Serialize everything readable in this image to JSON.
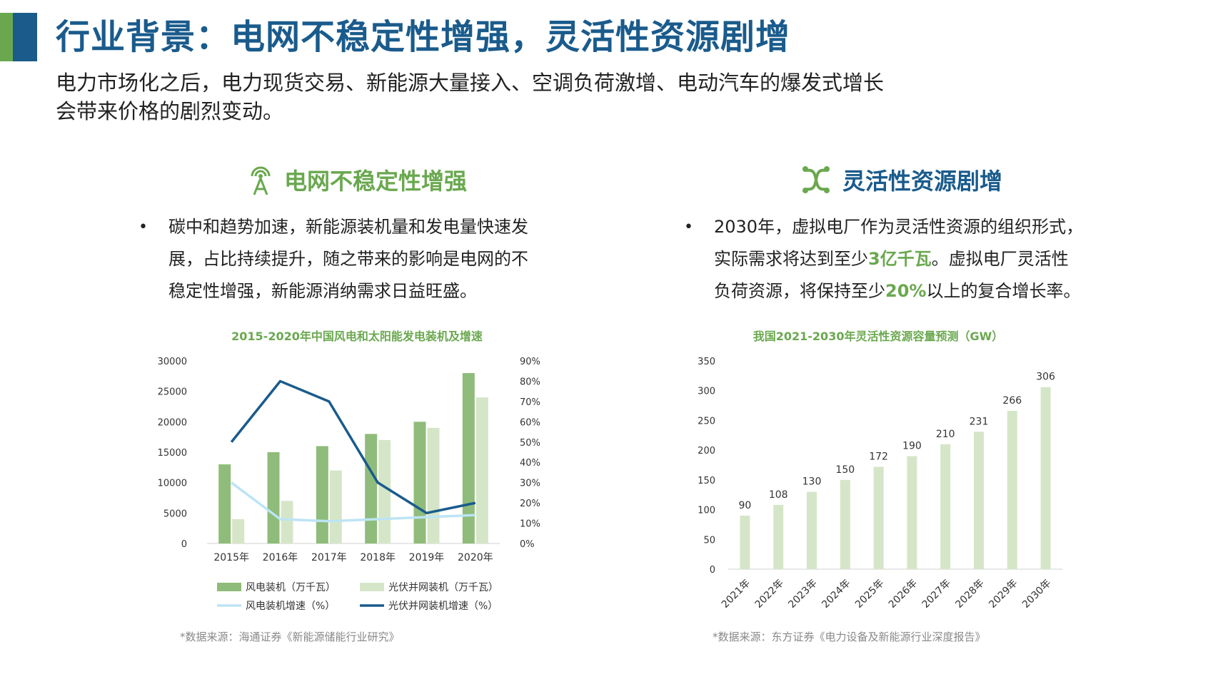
{
  "slide": {
    "title": "行业背景：电网不稳定性增强，灵活性资源剧增",
    "subtitle_line1": "电力市场化之后，电力现货交易、新能源大量接入、空调负荷激增、电动汽车的爆发式增长",
    "subtitle_line2": "会带来价格的剧烈变动。"
  },
  "left": {
    "heading": "电网不稳定性增强",
    "icon": "antenna-tower-icon",
    "bullet_lines": [
      "碳中和趋势加速，新能源装机量和发电量快速发",
      "展，占比持续提升，随之带来的影响是电网的不",
      "稳定性增强，新能源消纳需求日益旺盛。"
    ],
    "chart_title": "2015-2020年中国风电和太阳能发电装机及增速",
    "source": "*数据来源：海通证券《新能源储能行业研究》"
  },
  "right": {
    "heading": "灵活性资源剧增",
    "icon": "network-nodes-icon",
    "line1": "2030年，虚拟电厂作为灵活性资源的组织形式，",
    "line2_pre": "实际需求将达到至少",
    "line2_hl": "3亿千瓦",
    "line2_post": "。虚拟电厂灵活性",
    "line3_pre": "负荷资源，将保持至少",
    "line3_hl": "20%",
    "line3_post": "以上的复合增长率。",
    "chart_title": "我国2021-2030年灵活性资源容量预测（GW）",
    "source": "*数据来源：东方证券《电力设备及新能源行业深度报告》"
  },
  "colors": {
    "brand_blue": "#1a5b8c",
    "accent_green": "#6aa84f",
    "wind_bar": "#8fbc7a",
    "solar_bar": "#d5e6c8",
    "wind_growth_line": "#bde4f4",
    "solar_growth_line": "#1a5b8c",
    "forecast_bar": "#d5e6c8"
  },
  "chart_data": [
    {
      "type": "bar",
      "title": "2015-2020年中国风电和太阳能发电装机及增速",
      "categories": [
        "2015年",
        "2016年",
        "2017年",
        "2018年",
        "2019年",
        "2020年"
      ],
      "y_ticks": [
        "0",
        "5000",
        "10000",
        "15000",
        "20000",
        "25000",
        "30000"
      ],
      "y2_ticks": [
        "0%",
        "10%",
        "20%",
        "30%",
        "40%",
        "50%",
        "60%",
        "70%",
        "80%",
        "90%"
      ],
      "ylim": [
        0,
        30000
      ],
      "y2lim": [
        0,
        90
      ],
      "series": [
        {
          "name": "风电装机（万千瓦）",
          "kind": "bar",
          "values": [
            13000,
            15000,
            16000,
            18000,
            20000,
            28000
          ]
        },
        {
          "name": "光伏并网装机（万千瓦）",
          "kind": "bar",
          "values": [
            4000,
            7000,
            12000,
            17000,
            19000,
            24000
          ]
        },
        {
          "name": "风电装机增速（%）",
          "kind": "line",
          "values": [
            30,
            12,
            11,
            12,
            13,
            14
          ]
        },
        {
          "name": "光伏并网装机增速（%）",
          "kind": "line",
          "values": [
            50,
            80,
            70,
            30,
            15,
            20
          ]
        }
      ],
      "legend_position": "bottom",
      "grid": false
    },
    {
      "type": "bar",
      "title": "我国2021-2030年灵活性资源容量预测（GW）",
      "categories": [
        "2021年",
        "2022年",
        "2023年",
        "2024年",
        "2025年",
        "2026年",
        "2027年",
        "2028年",
        "2029年",
        "2030年"
      ],
      "values": [
        90,
        108,
        130,
        150,
        172,
        190,
        210,
        231,
        266,
        306
      ],
      "y_ticks": [
        "0",
        "50",
        "100",
        "150",
        "200",
        "250",
        "300",
        "350"
      ],
      "ylim": [
        0,
        350
      ],
      "data_labels": true,
      "grid": false
    }
  ]
}
